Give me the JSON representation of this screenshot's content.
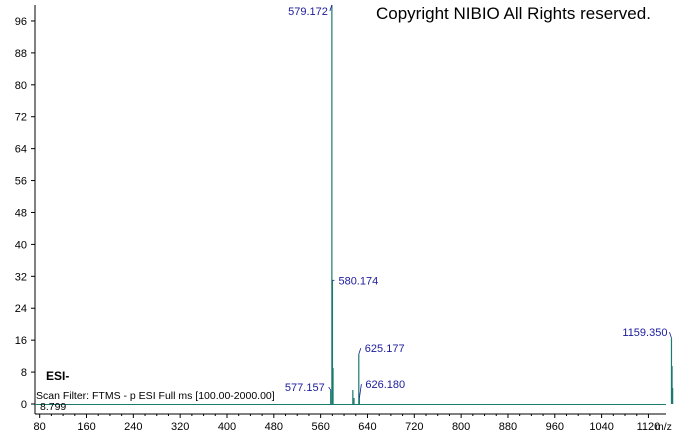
{
  "copyright": "Copyright NIBIO All Rights reserved.",
  "ion_mode": "ESI-",
  "scan_filter": "Scan Filter: FTMS - p ESI Full ms [100.00-2000.00]",
  "scan_value": "8.799",
  "chart_data": {
    "type": "line",
    "title": "",
    "xlabel": "m/z",
    "ylabel": "",
    "xlim": [
      72,
      1150
    ],
    "ylim": [
      0,
      100
    ],
    "x_ticks": [
      80,
      160,
      240,
      320,
      400,
      480,
      560,
      640,
      720,
      800,
      880,
      960,
      1040,
      1120
    ],
    "y_ticks": [
      0,
      8,
      16,
      24,
      32,
      40,
      48,
      56,
      64,
      72,
      80,
      88,
      96
    ],
    "grid": false,
    "color": "#1a7a6e",
    "label_color": "#1a1a9c",
    "peaks": [
      {
        "mz": 577.157,
        "intensity": 3.5,
        "label": "577.157"
      },
      {
        "mz": 579.172,
        "intensity": 100,
        "label": "579.172"
      },
      {
        "mz": 580.174,
        "intensity": 31,
        "label": "580.174"
      },
      {
        "mz": 581.18,
        "intensity": 9,
        "label": ""
      },
      {
        "mz": 615.0,
        "intensity": 3.5,
        "label": ""
      },
      {
        "mz": 617.0,
        "intensity": 1.5,
        "label": ""
      },
      {
        "mz": 625.177,
        "intensity": 12.5,
        "label": "625.177"
      },
      {
        "mz": 626.18,
        "intensity": 1.5,
        "label": "626.180"
      },
      {
        "mz": 1159.35,
        "intensity": 16.5,
        "label": "1159.350"
      },
      {
        "mz": 1160.35,
        "intensity": 9.5,
        "label": ""
      },
      {
        "mz": 1161.35,
        "intensity": 4,
        "label": ""
      }
    ]
  }
}
